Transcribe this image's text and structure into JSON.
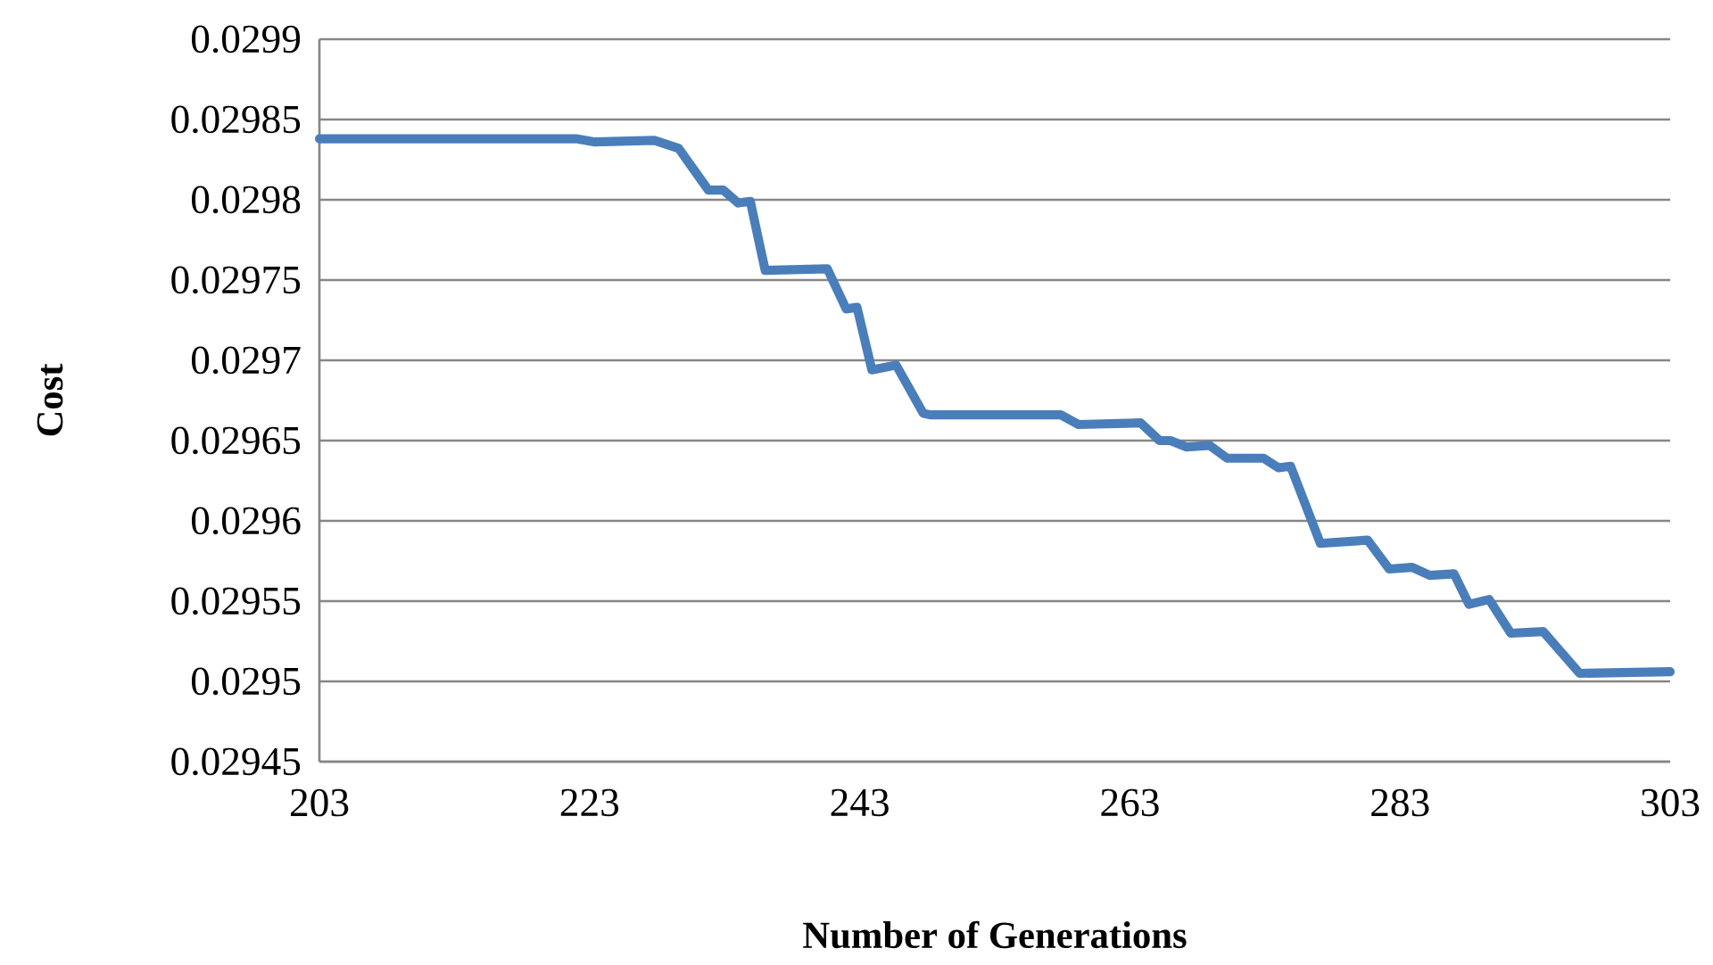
{
  "chart_data": {
    "type": "line",
    "xlabel": "Number of Generations",
    "ylabel": "Cost",
    "series": [
      {
        "color": "#4a7ebb",
        "x": [
          203,
          222,
          223.4,
          227.8,
          229.6,
          231.8,
          232.9,
          234,
          234.9,
          236,
          240.6,
          242,
          242.8,
          243.9,
          245.7,
          247.7,
          248.2,
          257.9,
          259.2,
          263.8,
          265.2,
          266,
          267.2,
          268.9,
          270.2,
          272.9,
          274,
          274.9,
          277.1,
          280.6,
          282.2,
          283.9,
          285.2,
          287,
          288.1,
          289.6,
          291.2,
          293.6,
          296.3,
          303
        ],
        "values": [
          0.029838,
          0.029838,
          0.029836,
          0.029837,
          0.029832,
          0.029806,
          0.029806,
          0.029798,
          0.029799,
          0.029756,
          0.029757,
          0.029732,
          0.029733,
          0.029694,
          0.029697,
          0.029667,
          0.029666,
          0.029666,
          0.02966,
          0.029661,
          0.02965,
          0.02965,
          0.029646,
          0.029647,
          0.029639,
          0.029639,
          0.029633,
          0.029634,
          0.029586,
          0.029588,
          0.02957,
          0.029571,
          0.029566,
          0.029567,
          0.029548,
          0.029551,
          0.02953,
          0.029531,
          0.029505,
          0.029506
        ]
      }
    ],
    "xlim": [
      203,
      303
    ],
    "xticks": [
      203,
      223,
      243,
      263,
      283,
      303
    ],
    "ylim": [
      0.02945,
      0.0299
    ],
    "yticks": [
      0.02945,
      0.0295,
      0.02955,
      0.0296,
      0.02965,
      0.0297,
      0.02975,
      0.0298,
      0.02985,
      0.0299
    ],
    "grid": "y",
    "marker": "none",
    "line_style": "solid"
  }
}
